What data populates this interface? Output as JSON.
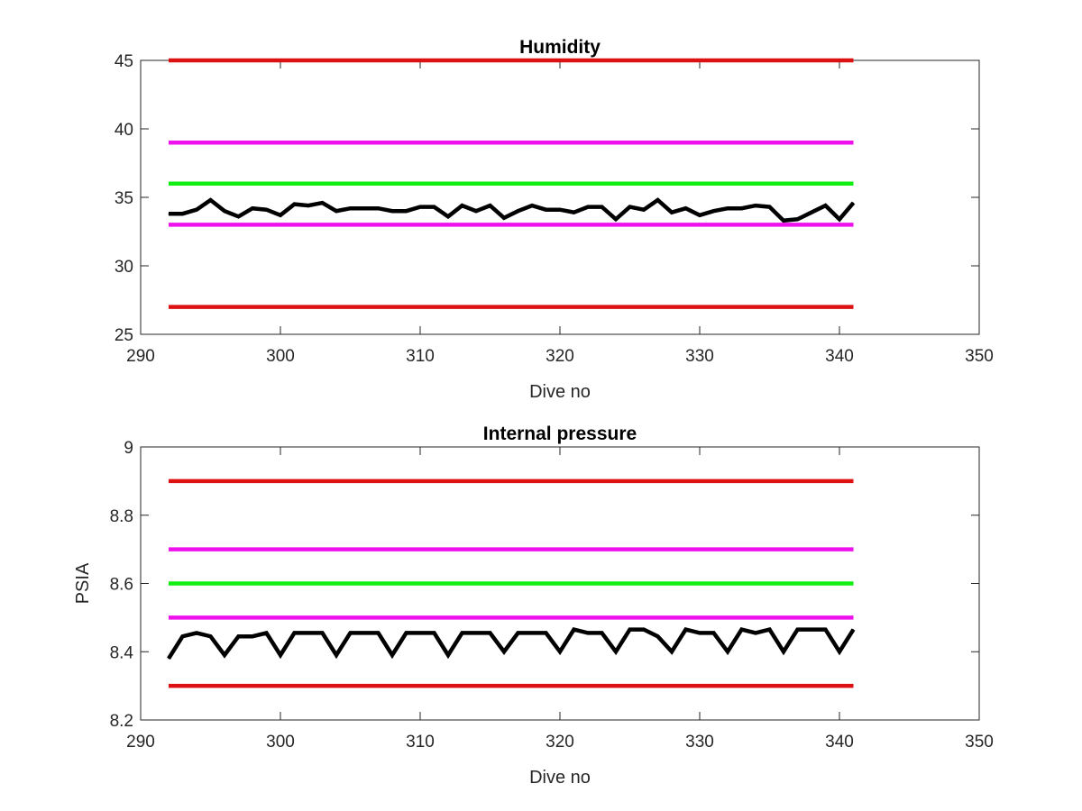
{
  "chart_data": [
    {
      "type": "line",
      "title": "Humidity",
      "xlabel": "Dive no",
      "ylabel": "",
      "xlim": [
        290,
        350
      ],
      "ylim": [
        25,
        45
      ],
      "x_ticks": [
        "290",
        "300",
        "310",
        "320",
        "330",
        "340",
        "350"
      ],
      "y_ticks": [
        "25",
        "30",
        "35",
        "40",
        "45"
      ],
      "grid": false,
      "thresholds": [
        {
          "color": "#dd1111",
          "value": 45,
          "x_range": [
            292,
            341
          ]
        },
        {
          "color": "#ee11ee",
          "value": 39,
          "x_range": [
            292,
            341
          ]
        },
        {
          "color": "#11ee11",
          "value": 36,
          "x_range": [
            292,
            341
          ]
        },
        {
          "color": "#ee11ee",
          "value": 33,
          "x_range": [
            292,
            341
          ]
        },
        {
          "color": "#dd1111",
          "value": 27,
          "x_range": [
            292,
            341
          ]
        }
      ],
      "series": [
        {
          "color": "#000000",
          "x": [
            292,
            293,
            294,
            295,
            296,
            297,
            298,
            299,
            300,
            301,
            302,
            303,
            304,
            305,
            306,
            307,
            308,
            309,
            310,
            311,
            312,
            313,
            314,
            315,
            316,
            317,
            318,
            319,
            320,
            321,
            322,
            323,
            324,
            325,
            326,
            327,
            328,
            329,
            330,
            331,
            332,
            333,
            334,
            335,
            336,
            337,
            338,
            339,
            340,
            341
          ],
          "y": [
            33.8,
            33.8,
            34.1,
            34.8,
            34.0,
            33.6,
            34.2,
            34.1,
            33.7,
            34.5,
            34.4,
            34.6,
            34.0,
            34.2,
            34.2,
            34.2,
            34.0,
            34.0,
            34.3,
            34.3,
            33.6,
            34.4,
            34.0,
            34.4,
            33.5,
            34.0,
            34.4,
            34.1,
            34.1,
            33.9,
            34.3,
            34.3,
            33.4,
            34.3,
            34.1,
            34.8,
            33.9,
            34.2,
            33.7,
            34.0,
            34.2,
            34.2,
            34.4,
            34.3,
            33.3,
            33.4,
            33.9,
            34.4,
            33.4,
            34.6
          ]
        }
      ]
    },
    {
      "type": "line",
      "title": "Internal pressure",
      "xlabel": "Dive no",
      "ylabel": "PSIA",
      "xlim": [
        290,
        350
      ],
      "ylim": [
        8.2,
        9
      ],
      "x_ticks": [
        "290",
        "300",
        "310",
        "320",
        "330",
        "340",
        "350"
      ],
      "y_ticks": [
        "8.2",
        "8.4",
        "8.6",
        "8.8",
        "9"
      ],
      "grid": false,
      "thresholds": [
        {
          "color": "#dd1111",
          "value": 8.9,
          "x_range": [
            292,
            341
          ]
        },
        {
          "color": "#ee11ee",
          "value": 8.7,
          "x_range": [
            292,
            341
          ]
        },
        {
          "color": "#11ee11",
          "value": 8.6,
          "x_range": [
            292,
            341
          ]
        },
        {
          "color": "#ee11ee",
          "value": 8.5,
          "x_range": [
            292,
            341
          ]
        },
        {
          "color": "#dd1111",
          "value": 8.3,
          "x_range": [
            292,
            341
          ]
        }
      ],
      "series": [
        {
          "color": "#000000",
          "x": [
            292,
            293,
            294,
            295,
            296,
            297,
            298,
            299,
            300,
            301,
            302,
            303,
            304,
            305,
            306,
            307,
            308,
            309,
            310,
            311,
            312,
            313,
            314,
            315,
            316,
            317,
            318,
            319,
            320,
            321,
            322,
            323,
            324,
            325,
            326,
            327,
            328,
            329,
            330,
            331,
            332,
            333,
            334,
            335,
            336,
            337,
            338,
            339,
            340,
            341
          ],
          "y": [
            8.38,
            8.445,
            8.455,
            8.445,
            8.39,
            8.445,
            8.445,
            8.455,
            8.39,
            8.455,
            8.455,
            8.455,
            8.39,
            8.455,
            8.455,
            8.455,
            8.39,
            8.455,
            8.455,
            8.455,
            8.39,
            8.455,
            8.455,
            8.455,
            8.4,
            8.455,
            8.455,
            8.455,
            8.4,
            8.465,
            8.455,
            8.455,
            8.4,
            8.465,
            8.465,
            8.445,
            8.4,
            8.465,
            8.455,
            8.455,
            8.4,
            8.465,
            8.455,
            8.465,
            8.4,
            8.465,
            8.465,
            8.465,
            8.4,
            8.465
          ]
        }
      ]
    }
  ]
}
